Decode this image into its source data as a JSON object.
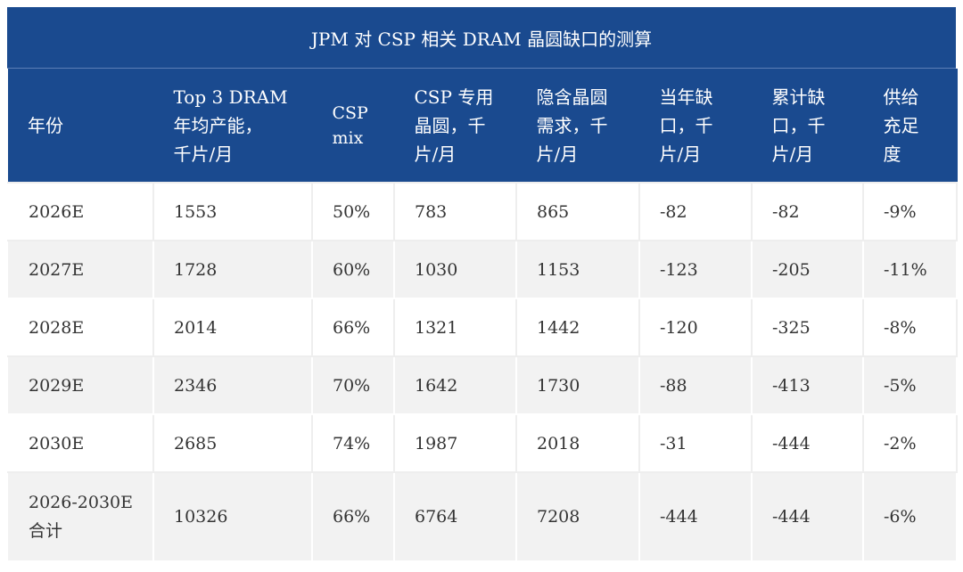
{
  "title": "JPM 对 CSP 相关 DRAM 晶圆缺口的测算",
  "headers": [
    "年份",
    "Top 3 DRAM\n年均产能，\n千片/月",
    "CSP\nmix",
    "CSP 专用\n晶圆，千\n片/月",
    "隐含晶圆\n需求，千\n片/月",
    "当年缺\n口，千\n片/月",
    "累计缺\n口，千\n片/月",
    "供给\n充足\n度"
  ],
  "rows": [
    [
      "2026E",
      "1553",
      "50%",
      "783",
      "865",
      "-82",
      "-82",
      "-9%"
    ],
    [
      "2027E",
      "1728",
      "60%",
      "1030",
      "1153",
      "-123",
      "-205",
      "-11%"
    ],
    [
      "2028E",
      "2014",
      "66%",
      "1321",
      "1442",
      "-120",
      "-325",
      "-8%"
    ],
    [
      "2029E",
      "2346",
      "70%",
      "1642",
      "1730",
      "-88",
      "-413",
      "-5%"
    ],
    [
      "2030E",
      "2685",
      "74%",
      "1987",
      "2018",
      "-31",
      "-444",
      "-2%"
    ],
    [
      "2026-2030E\n合计",
      "10326",
      "66%",
      "6764",
      "7208",
      "-444",
      "-444",
      "-6%"
    ]
  ],
  "colors": {
    "header_bg": "#1a4a8f",
    "header_text": "#ffffff",
    "row_alt_bg": "#f2f2f2",
    "body_text": "#333333"
  }
}
